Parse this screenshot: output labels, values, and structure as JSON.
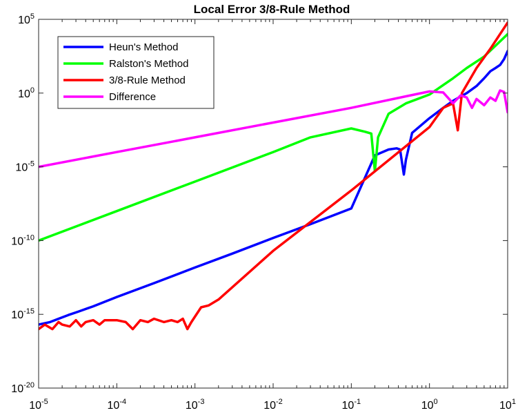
{
  "chart_data": {
    "type": "line",
    "title": "Local Error 3/8-Rule Method",
    "xlabel": "",
    "ylabel": "",
    "xscale": "log",
    "yscale": "log",
    "xlim": [
      1e-05,
      10
    ],
    "ylim": [
      1e-20,
      100000.0
    ],
    "x_ticks": [
      {
        "value": 1e-05,
        "base": "10",
        "exp": "-5"
      },
      {
        "value": 0.0001,
        "base": "10",
        "exp": "-4"
      },
      {
        "value": 0.001,
        "base": "10",
        "exp": "-3"
      },
      {
        "value": 0.01,
        "base": "10",
        "exp": "-2"
      },
      {
        "value": 0.1,
        "base": "10",
        "exp": "-1"
      },
      {
        "value": 1,
        "base": "10",
        "exp": "0"
      },
      {
        "value": 10,
        "base": "10",
        "exp": "1"
      }
    ],
    "y_ticks": [
      {
        "value": 1e-20,
        "base": "10",
        "exp": "-20"
      },
      {
        "value": 1e-15,
        "base": "10",
        "exp": "-15"
      },
      {
        "value": 1e-10,
        "base": "10",
        "exp": "-10"
      },
      {
        "value": 1e-05,
        "base": "10",
        "exp": "-5"
      },
      {
        "value": 1,
        "base": "10",
        "exp": "0"
      },
      {
        "value": 100000.0,
        "base": "10",
        "exp": "5"
      }
    ],
    "grid": false,
    "legend_position": "top-left",
    "series": [
      {
        "name": "Heun's Method",
        "color": "#0000ff",
        "points": [
          [
            1e-05,
            2e-16
          ],
          [
            1.4e-05,
            3e-16
          ],
          [
            1.8e-05,
            5e-16
          ],
          [
            2.4e-05,
            9e-16
          ],
          [
            3.2e-05,
            1.5e-15
          ],
          [
            5e-05,
            3.5e-15
          ],
          [
            0.0001,
            1.5e-14
          ],
          [
            0.0003,
            1.3e-13
          ],
          [
            0.001,
            1.5e-12
          ],
          [
            0.003,
            1.3e-11
          ],
          [
            0.01,
            1.5e-10
          ],
          [
            0.03,
            1.3e-09
          ],
          [
            0.1,
            1.5e-08
          ],
          [
            0.2,
            6e-05
          ],
          [
            0.3,
            0.00015
          ],
          [
            0.38,
            0.00018
          ],
          [
            0.42,
            0.00015
          ],
          [
            0.47,
            3e-06
          ],
          [
            0.5,
            3e-05
          ],
          [
            0.6,
            0.002
          ],
          [
            1,
            0.02
          ],
          [
            1.5,
            0.1
          ],
          [
            2,
            0.3
          ],
          [
            3,
            1
          ],
          [
            4,
            3
          ],
          [
            5,
            10
          ],
          [
            6,
            30
          ],
          [
            7,
            50
          ],
          [
            8,
            80
          ],
          [
            9,
            200
          ],
          [
            10,
            700
          ]
        ]
      },
      {
        "name": "Ralston's Method",
        "color": "#00ff00",
        "points": [
          [
            1e-05,
            1e-10
          ],
          [
            0.0001,
            1e-08
          ],
          [
            0.001,
            1e-06
          ],
          [
            0.01,
            0.0001
          ],
          [
            0.03,
            0.001
          ],
          [
            0.1,
            0.004
          ],
          [
            0.15,
            0.0024
          ],
          [
            0.18,
            0.0018
          ],
          [
            0.2,
            5e-06
          ],
          [
            0.22,
            0.001
          ],
          [
            0.3,
            0.04
          ],
          [
            0.5,
            0.2
          ],
          [
            1,
            0.8
          ],
          [
            2,
            10
          ],
          [
            3,
            50
          ],
          [
            5,
            300
          ],
          [
            10,
            10000
          ]
        ]
      },
      {
        "name": "3/8-Rule Method",
        "color": "#ff0000",
        "points": [
          [
            1e-05,
            1e-16
          ],
          [
            1.2e-05,
            2e-16
          ],
          [
            1.5e-05,
            1e-16
          ],
          [
            1.8e-05,
            3e-16
          ],
          [
            2e-05,
            2e-16
          ],
          [
            2.5e-05,
            1.5e-16
          ],
          [
            3e-05,
            4e-16
          ],
          [
            3.5e-05,
            1.5e-16
          ],
          [
            4e-05,
            3e-16
          ],
          [
            5e-05,
            4e-16
          ],
          [
            6e-05,
            2e-16
          ],
          [
            7e-05,
            4e-16
          ],
          [
            0.0001,
            4e-16
          ],
          [
            0.00013,
            3e-16
          ],
          [
            0.00016,
            1e-16
          ],
          [
            0.0002,
            4e-16
          ],
          [
            0.00025,
            3e-16
          ],
          [
            0.0003,
            5e-16
          ],
          [
            0.0004,
            3e-16
          ],
          [
            0.0005,
            4e-16
          ],
          [
            0.0006,
            3e-16
          ],
          [
            0.0007,
            5e-16
          ],
          [
            0.0008,
            1e-16
          ],
          [
            0.0009,
            3e-16
          ],
          [
            0.0012,
            3e-15
          ],
          [
            0.0015,
            4e-15
          ],
          [
            0.002,
            1e-14
          ],
          [
            0.01,
            2e-11
          ],
          [
            0.1,
            2.5e-07
          ],
          [
            1,
            0.005
          ],
          [
            1.5,
            0.1
          ],
          [
            2,
            0.2
          ],
          [
            2.3,
            0.003
          ],
          [
            2.6,
            1
          ],
          [
            4,
            50
          ],
          [
            6,
            1000
          ],
          [
            10,
            60000
          ]
        ]
      },
      {
        "name": "Difference",
        "color": "#ff00ff",
        "points": [
          [
            1e-05,
            1e-05
          ],
          [
            0.0001,
            0.0001
          ],
          [
            0.001,
            0.001
          ],
          [
            0.01,
            0.01
          ],
          [
            0.1,
            0.1
          ],
          [
            0.5,
            0.6
          ],
          [
            1,
            1.3
          ],
          [
            1.5,
            1.1
          ],
          [
            2,
            0.2
          ],
          [
            2.5,
            0.7
          ],
          [
            3,
            0.5
          ],
          [
            3.5,
            0.1
          ],
          [
            4,
            0.4
          ],
          [
            5,
            0.15
          ],
          [
            6,
            0.5
          ],
          [
            7,
            0.3
          ],
          [
            8,
            1.5
          ],
          [
            9,
            1.2
          ],
          [
            10,
            0.05
          ]
        ]
      }
    ]
  }
}
